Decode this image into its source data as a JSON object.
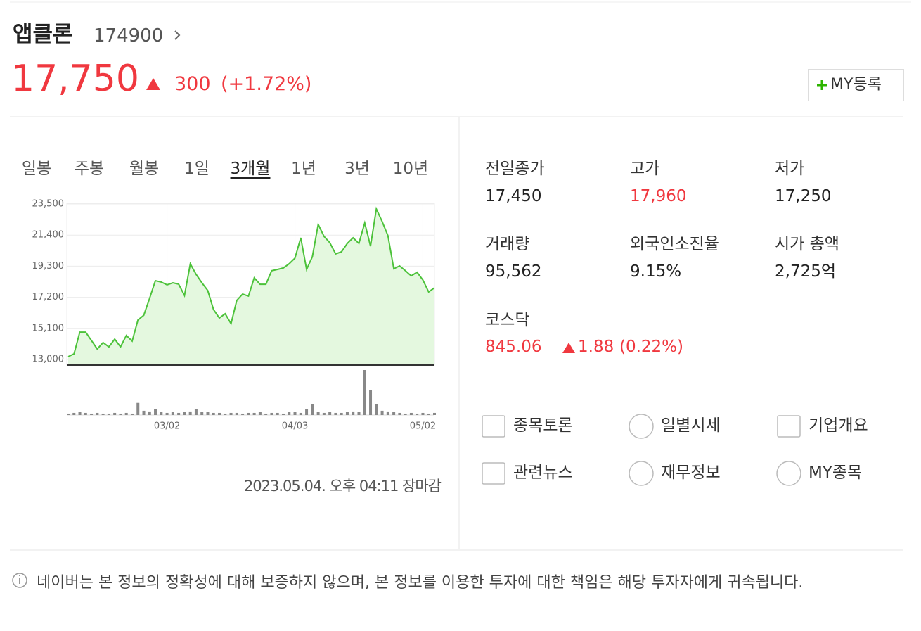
{
  "header": {
    "name": "앱클론",
    "code": "174900",
    "price": "17,750",
    "change": "300",
    "change_rate": "(+1.72%)",
    "my_button": "MY등록"
  },
  "tabs": [
    "일봉",
    "주봉",
    "월봉",
    "1일",
    "3개월",
    "1년",
    "3년",
    "10년"
  ],
  "selected_tab_index": 4,
  "chart_data": {
    "type": "line",
    "color": "#4cc23a",
    "fill": "#e4f8df",
    "grid": true,
    "ylim": [
      13000,
      23500
    ],
    "yticks": [
      {
        "value": 13000,
        "label": "13,000"
      },
      {
        "value": 15100,
        "label": "15,100"
      },
      {
        "value": 17200,
        "label": "17,200"
      },
      {
        "value": 19300,
        "label": "19,300"
      },
      {
        "value": 21400,
        "label": "21,400"
      },
      {
        "value": 23500,
        "label": "23,500"
      }
    ],
    "categories": [
      null,
      null,
      null,
      null,
      null,
      null,
      null,
      null,
      null,
      null,
      null,
      null,
      null,
      null,
      null,
      null,
      null,
      "03/02",
      null,
      null,
      null,
      null,
      null,
      null,
      null,
      null,
      null,
      null,
      null,
      null,
      null,
      null,
      null,
      null,
      null,
      null,
      null,
      null,
      null,
      "04/03",
      null,
      null,
      null,
      null,
      null,
      null,
      null,
      null,
      null,
      null,
      null,
      null,
      null,
      null,
      null,
      null,
      null,
      null,
      null,
      null,
      null,
      "05/02",
      null,
      null
    ],
    "values": [
      13190,
      13380,
      14850,
      14850,
      14280,
      13710,
      14140,
      13850,
      14380,
      13850,
      14620,
      14240,
      15660,
      15990,
      17130,
      18320,
      18230,
      18040,
      18180,
      18090,
      17320,
      19460,
      18750,
      18180,
      17660,
      16370,
      15800,
      16090,
      15420,
      16990,
      17420,
      17280,
      18510,
      18080,
      18080,
      18990,
      19080,
      19180,
      19460,
      19840,
      21220,
      19080,
      19940,
      22120,
      21310,
      20890,
      20130,
      20270,
      20840,
      21220,
      20840,
      22220,
      20650,
      23170,
      22310,
      21360,
      19130,
      19320,
      18990,
      18650,
      18890,
      18370,
      17560,
      17840
    ],
    "volume": [
      2,
      3,
      4,
      3,
      2,
      3,
      2,
      2,
      3,
      2,
      3,
      2,
      17,
      6,
      5,
      8,
      4,
      3,
      4,
      3,
      4,
      5,
      8,
      4,
      4,
      3,
      3,
      2,
      3,
      3,
      2,
      3,
      3,
      4,
      2,
      3,
      3,
      2,
      4,
      4,
      3,
      8,
      15,
      4,
      3,
      4,
      3,
      3,
      4,
      5,
      4,
      63,
      35,
      15,
      6,
      5,
      4,
      3,
      2,
      3,
      2,
      3,
      2,
      3
    ]
  },
  "timestamp": "2023.05.04. 오후 04:11 장마감",
  "stats": [
    {
      "label": "전일종가",
      "value": "17,450"
    },
    {
      "label": "고가",
      "value": "17,960",
      "color": "#f0383f"
    },
    {
      "label": "저가",
      "value": "17,250"
    },
    {
      "label": "거래량",
      "value": "95,562"
    },
    {
      "label": "외국인소진율",
      "value": "9.15%"
    },
    {
      "label": "시가 총액",
      "value": "2,725억"
    }
  ],
  "index": {
    "name": "코스닥",
    "value": "845.06",
    "change": "1.88",
    "change_rate": "(0.22%)"
  },
  "links": [
    "종목토론",
    "일별시세",
    "기업개요",
    "관련뉴스",
    "재무정보",
    "MY종목"
  ],
  "disclaimer": "네이버는 본 정보의 정확성에 대해 보증하지 않으며, 본 정보를 이용한 투자에 대한 책임은 해당 투자자에게 귀속됩니다."
}
